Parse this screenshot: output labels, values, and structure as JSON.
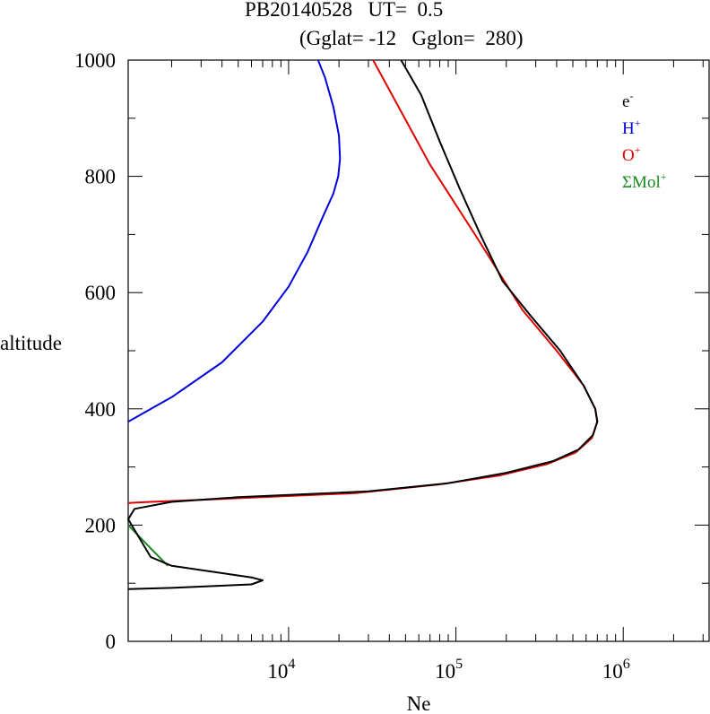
{
  "chart_data": {
    "type": "line",
    "title": "PB20140528   UT=  0.5",
    "subtitle": "(Gglat= -12   Gglon=  280)",
    "xlabel": "Ne",
    "ylabel": "altitude",
    "x_scale": "log",
    "xlim": [
      1100,
      3300000
    ],
    "ylim": [
      0,
      1000
    ],
    "x_ticks": [
      {
        "value": 10000,
        "base": "10",
        "exp": "4"
      },
      {
        "value": 100000,
        "base": "10",
        "exp": "5"
      },
      {
        "value": 1000000,
        "base": "10",
        "exp": "6"
      }
    ],
    "y_ticks": [
      {
        "value": 0,
        "label": "0"
      },
      {
        "value": 200,
        "label": "200"
      },
      {
        "value": 400,
        "label": "400"
      },
      {
        "value": 600,
        "label": "600"
      },
      {
        "value": 800,
        "label": "800"
      },
      {
        "value": 1000,
        "label": "1000"
      }
    ],
    "legend_placement": "top-right",
    "series": [
      {
        "name": "ΣMol",
        "sup": "+",
        "color": "#1a8a1a",
        "x": [
          1100,
          1500,
          1900
        ],
        "y": [
          200,
          160,
          130
        ]
      },
      {
        "name": "H",
        "sup": "+",
        "color": "#0000dd",
        "x": [
          1100,
          2000,
          4000,
          7000,
          10000,
          13000,
          16000,
          18500,
          19800,
          20300,
          20000,
          18500,
          16500,
          15000
        ],
        "y": [
          378,
          420,
          480,
          550,
          610,
          670,
          730,
          770,
          800,
          830,
          870,
          920,
          970,
          1000
        ]
      },
      {
        "name": "O",
        "sup": "+",
        "color": "#dd0000",
        "x": [
          1100,
          1500,
          4000,
          25000,
          80000,
          180000,
          350000,
          520000,
          650000,
          700000,
          680000,
          580000,
          400000,
          250000,
          130000,
          70000,
          32000
        ],
        "y": [
          238,
          240,
          245,
          255,
          270,
          285,
          305,
          325,
          350,
          378,
          400,
          440,
          500,
          570,
          700,
          820,
          1000
        ]
      },
      {
        "name": "e",
        "sup": "-",
        "color": "#000000",
        "x": [
          1100,
          2000,
          6000,
          7000,
          6000,
          2000,
          1500,
          1100,
          1200,
          2000,
          5000,
          30000,
          90000,
          200000,
          380000,
          540000,
          660000,
          700000,
          680000,
          580000,
          420000,
          280000,
          190000,
          140000,
          105000,
          80000,
          62000,
          47000
        ],
        "y": [
          90,
          92,
          98,
          105,
          110,
          130,
          145,
          210,
          228,
          240,
          248,
          258,
          272,
          290,
          310,
          330,
          355,
          378,
          400,
          440,
          500,
          560,
          620,
          700,
          780,
          860,
          940,
          1000
        ]
      }
    ]
  }
}
